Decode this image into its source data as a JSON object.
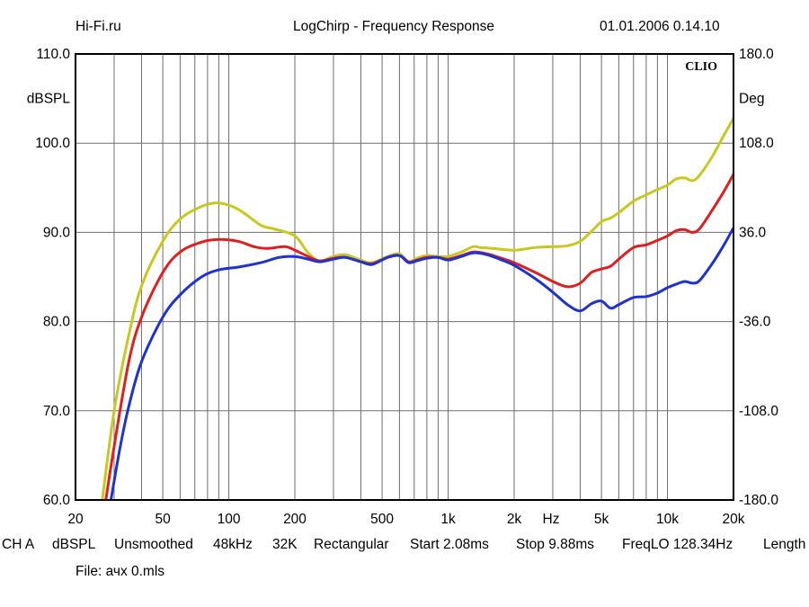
{
  "header": {
    "left": "Hi-Fi.ru",
    "center": "LogChirp - Frequency Response",
    "right": "01.01.2006 0.14.10"
  },
  "footer": {
    "settings": [
      "CH A",
      "dBSPL",
      "Unsmoothed",
      "48kHz",
      "32K",
      "Rectangular",
      "Start 2.08ms",
      "Stop 9.88ms",
      "FreqLO 128.34Hz",
      "Length"
    ],
    "file": "File: ачх 0.mls"
  },
  "chart_data": {
    "type": "line",
    "brand": "CLIO",
    "xscale": "log",
    "xlim": [
      20,
      20000
    ],
    "ylim": [
      60,
      110
    ],
    "y2lim": [
      -180,
      180
    ],
    "ylabel": "dBSPL",
    "y2label": "Deg",
    "xunit": "Hz",
    "grid": true,
    "x_ticks": [
      {
        "v": 20,
        "label": "20"
      },
      {
        "v": 50,
        "label": "50"
      },
      {
        "v": 100,
        "label": "100"
      },
      {
        "v": 200,
        "label": "200"
      },
      {
        "v": 500,
        "label": "500"
      },
      {
        "v": 1000,
        "label": "1k"
      },
      {
        "v": 2000,
        "label": "2k"
      },
      {
        "v": 5000,
        "label": "5k"
      },
      {
        "v": 10000,
        "label": "10k"
      },
      {
        "v": 20000,
        "label": "20k"
      }
    ],
    "y_ticks": [
      {
        "v": 60,
        "label": "60.0"
      },
      {
        "v": 70,
        "label": "70.0"
      },
      {
        "v": 80,
        "label": "80.0"
      },
      {
        "v": 90,
        "label": "90.0"
      },
      {
        "v": 100,
        "label": "100.0"
      },
      {
        "v": 110,
        "label": "110.0"
      }
    ],
    "y2_ticks": [
      {
        "v": -180,
        "label": "-180.0"
      },
      {
        "v": -108,
        "label": "-108.0"
      },
      {
        "v": -36,
        "label": "-36.0"
      },
      {
        "v": 36,
        "label": "36.0"
      },
      {
        "v": 108,
        "label": "108.0"
      },
      {
        "v": 180,
        "label": "180.0"
      }
    ],
    "series": [
      {
        "color": "#c8c81e",
        "points": [
          [
            26.5,
            60
          ],
          [
            30,
            70
          ],
          [
            35,
            78.5
          ],
          [
            40,
            84
          ],
          [
            50,
            89
          ],
          [
            60,
            91.5
          ],
          [
            75,
            92.9
          ],
          [
            90,
            93.3
          ],
          [
            110,
            92.6
          ],
          [
            140,
            90.8
          ],
          [
            160,
            90.4
          ],
          [
            200,
            89.6
          ],
          [
            230,
            87.7
          ],
          [
            260,
            86.8
          ],
          [
            300,
            87.3
          ],
          [
            340,
            87.5
          ],
          [
            400,
            86.9
          ],
          [
            450,
            86.6
          ],
          [
            530,
            87.3
          ],
          [
            600,
            87.6
          ],
          [
            660,
            86.7
          ],
          [
            720,
            87.1
          ],
          [
            800,
            87.4
          ],
          [
            900,
            87.3
          ],
          [
            1000,
            87.3
          ],
          [
            1150,
            87.8
          ],
          [
            1300,
            88.4
          ],
          [
            1400,
            88.3
          ],
          [
            1600,
            88.2
          ],
          [
            2000,
            88.0
          ],
          [
            2500,
            88.3
          ],
          [
            3000,
            88.4
          ],
          [
            3500,
            88.5
          ],
          [
            4000,
            89.0
          ],
          [
            4500,
            90.1
          ],
          [
            5000,
            91.2
          ],
          [
            5500,
            91.6
          ],
          [
            6000,
            92.2
          ],
          [
            7000,
            93.5
          ],
          [
            8000,
            94.2
          ],
          [
            9000,
            94.8
          ],
          [
            10000,
            95.3
          ],
          [
            11000,
            96.0
          ],
          [
            12000,
            96.1
          ],
          [
            13000,
            95.8
          ],
          [
            14000,
            96.4
          ],
          [
            16000,
            98.5
          ],
          [
            18000,
            100.8
          ],
          [
            20000,
            102.8
          ]
        ]
      },
      {
        "color": "#e01e1e",
        "points": [
          [
            27.5,
            60
          ],
          [
            30,
            66
          ],
          [
            35,
            75.5
          ],
          [
            40,
            80.5
          ],
          [
            50,
            85.5
          ],
          [
            60,
            87.8
          ],
          [
            75,
            88.9
          ],
          [
            90,
            89.2
          ],
          [
            110,
            89.0
          ],
          [
            130,
            88.4
          ],
          [
            150,
            88.2
          ],
          [
            180,
            88.4
          ],
          [
            200,
            88.0
          ],
          [
            230,
            87.3
          ],
          [
            260,
            86.8
          ],
          [
            300,
            87.1
          ],
          [
            340,
            87.2
          ],
          [
            400,
            86.7
          ],
          [
            450,
            86.5
          ],
          [
            530,
            87.2
          ],
          [
            600,
            87.4
          ],
          [
            660,
            86.7
          ],
          [
            720,
            86.9
          ],
          [
            800,
            87.2
          ],
          [
            900,
            87.2
          ],
          [
            1000,
            87.0
          ],
          [
            1150,
            87.4
          ],
          [
            1300,
            87.8
          ],
          [
            1500,
            87.6
          ],
          [
            1800,
            87.0
          ],
          [
            2000,
            86.6
          ],
          [
            2500,
            85.5
          ],
          [
            3000,
            84.5
          ],
          [
            3500,
            83.9
          ],
          [
            4000,
            84.3
          ],
          [
            4500,
            85.5
          ],
          [
            5000,
            85.9
          ],
          [
            5500,
            86.2
          ],
          [
            6000,
            87.0
          ],
          [
            7000,
            88.3
          ],
          [
            8000,
            88.6
          ],
          [
            9000,
            89.1
          ],
          [
            10000,
            89.6
          ],
          [
            11000,
            90.2
          ],
          [
            12000,
            90.3
          ],
          [
            13000,
            90.0
          ],
          [
            14000,
            90.4
          ],
          [
            16000,
            92.5
          ],
          [
            18000,
            94.5
          ],
          [
            20000,
            96.5
          ]
        ]
      },
      {
        "color": "#1e32d2",
        "points": [
          [
            29,
            60
          ],
          [
            32,
            66
          ],
          [
            35,
            70.5
          ],
          [
            40,
            75.5
          ],
          [
            50,
            80.5
          ],
          [
            60,
            83
          ],
          [
            75,
            85
          ],
          [
            90,
            85.8
          ],
          [
            110,
            86.1
          ],
          [
            140,
            86.6
          ],
          [
            170,
            87.2
          ],
          [
            200,
            87.3
          ],
          [
            230,
            87.0
          ],
          [
            260,
            86.7
          ],
          [
            300,
            87.0
          ],
          [
            340,
            87.2
          ],
          [
            400,
            86.7
          ],
          [
            450,
            86.4
          ],
          [
            530,
            87.2
          ],
          [
            600,
            87.4
          ],
          [
            660,
            86.6
          ],
          [
            720,
            86.8
          ],
          [
            800,
            87.1
          ],
          [
            900,
            87.2
          ],
          [
            1000,
            86.9
          ],
          [
            1150,
            87.3
          ],
          [
            1300,
            87.7
          ],
          [
            1500,
            87.5
          ],
          [
            1800,
            86.8
          ],
          [
            2000,
            86.3
          ],
          [
            2500,
            84.8
          ],
          [
            3000,
            83.3
          ],
          [
            3500,
            81.9
          ],
          [
            4000,
            81.2
          ],
          [
            4500,
            82.0
          ],
          [
            5000,
            82.3
          ],
          [
            5500,
            81.5
          ],
          [
            6000,
            81.9
          ],
          [
            7000,
            82.7
          ],
          [
            8000,
            82.8
          ],
          [
            9000,
            83.2
          ],
          [
            10000,
            83.8
          ],
          [
            11000,
            84.2
          ],
          [
            12000,
            84.5
          ],
          [
            13000,
            84.3
          ],
          [
            14000,
            84.6
          ],
          [
            16000,
            86.5
          ],
          [
            18000,
            88.5
          ],
          [
            20000,
            90.5
          ]
        ]
      }
    ]
  }
}
